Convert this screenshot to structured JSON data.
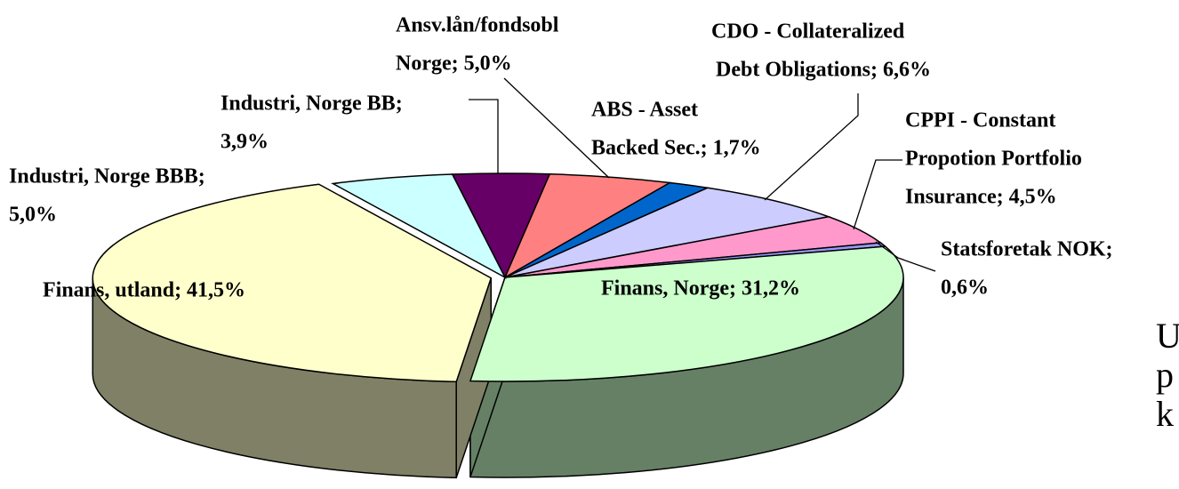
{
  "chart_data": {
    "type": "pie3d",
    "values": [
      3.9,
      5.0,
      1.7,
      6.6,
      4.5,
      0.6,
      31.2,
      41.5,
      5.0
    ],
    "value_labels": [
      [
        "Industri, Norge BB;",
        "3,9%"
      ],
      [
        "Ansv.lån/fondsobl",
        "Norge; 5,0%"
      ],
      [
        "ABS - Asset",
        "Backed Sec.; 1,7%"
      ],
      [
        "CDO - Collateralized",
        "Debt Obligations; 6,6%"
      ],
      [
        "CPPI - Constant",
        "Propotion Portfolio",
        "Insurance; 4,5%"
      ],
      [
        "Statsforetak NOK;",
        "0,6%"
      ],
      [
        "Finans, Norge; 31,2%"
      ],
      [
        "Finans, utland; 41,5%"
      ],
      [
        "Industri, Norge BBB;",
        "5,0%"
      ]
    ],
    "colors": [
      "#660066",
      "#FF8080",
      "#0066CC",
      "#CCCCFF",
      "#FF99CC",
      "#9999FF",
      "#CCFFCC",
      "#FFFFCC",
      "#CCFFFF"
    ],
    "exploded": [
      7
    ]
  },
  "slide_text": [
    "U",
    "p",
    "k"
  ]
}
